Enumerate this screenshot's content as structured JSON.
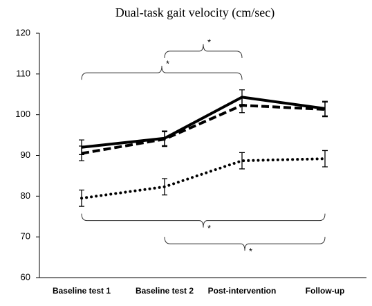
{
  "chart_data": {
    "type": "line",
    "title": "Dual-task gait velocity (cm/sec)",
    "categories": [
      "Baseline test 1",
      "Baseline test 2",
      "Post-intervention",
      "Follow-up"
    ],
    "series": [
      {
        "color": "#000000",
        "style": "solid",
        "values": [
          92,
          94.2,
          104.3,
          101.5
        ],
        "errors": [
          1.8,
          1.8,
          1.8,
          1.8
        ]
      },
      {
        "color": "#000000",
        "style": "dashed",
        "values": [
          90.5,
          94,
          102.3,
          101.3
        ],
        "errors": [
          1.8,
          1.8,
          1.8,
          1.8
        ]
      },
      {
        "color": "#000000",
        "style": "dotted",
        "values": [
          79.5,
          82.3,
          88.7,
          89.2
        ],
        "errors": [
          2,
          2,
          2,
          2
        ]
      }
    ],
    "ylim": [
      60,
      120
    ],
    "yticks": [
      60,
      70,
      80,
      90,
      100,
      110,
      120
    ],
    "grid": false,
    "brackets": [
      {
        "from": "Baseline test 2",
        "to": "Post-intervention",
        "y": 115.6,
        "direction": "up",
        "label": "*"
      },
      {
        "from": "Baseline test 1",
        "to": "Post-intervention",
        "y": 110.3,
        "direction": "up",
        "label": "*"
      },
      {
        "from": "Baseline test 1",
        "to": "Follow-up",
        "y": 74,
        "direction": "down",
        "label": "*"
      },
      {
        "from": "Baseline test 2",
        "to": "Follow-up",
        "y": 68.3,
        "direction": "down",
        "label": "*"
      }
    ]
  }
}
